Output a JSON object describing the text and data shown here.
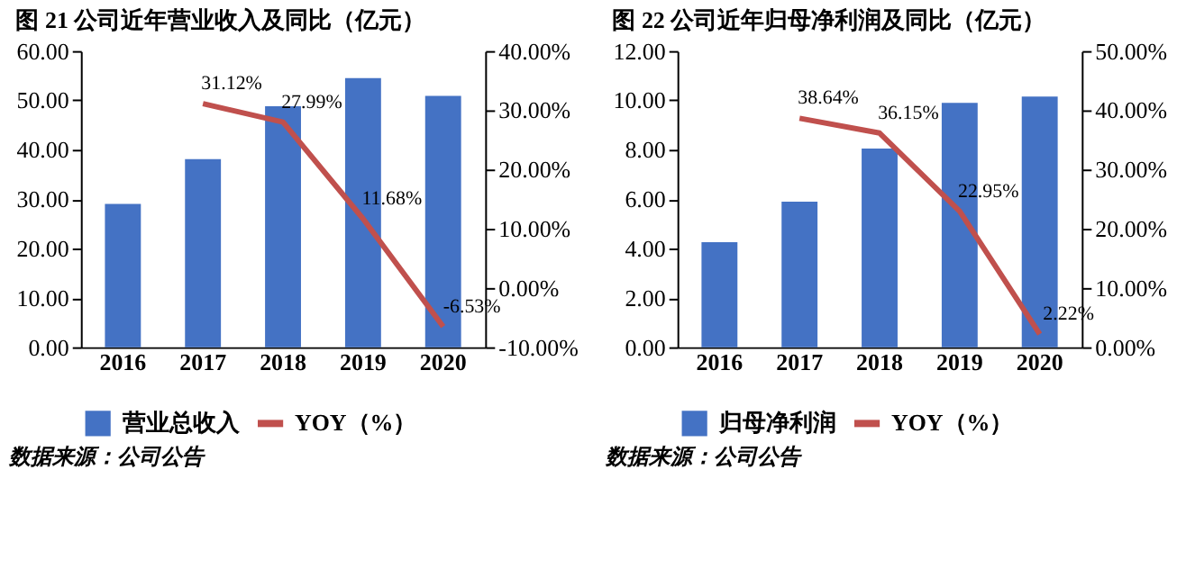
{
  "chart_data": [
    {
      "type": "bar",
      "title": "图 21 公司近年营业收入及同比（亿元）",
      "categories": [
        "2016",
        "2017",
        "2018",
        "2019",
        "2020"
      ],
      "series": [
        {
          "name": "营业总收入",
          "color": "#4472c4",
          "values": [
            29.0,
            38.1,
            48.8,
            54.5,
            50.9
          ]
        },
        {
          "name": "YOY（%）",
          "type": "line",
          "axis": "y2",
          "line_style": "solid",
          "color": "#c0504d",
          "values": [
            null,
            31.12,
            27.99,
            11.68,
            -6.53
          ],
          "value_labels": [
            null,
            "31.12%",
            "27.99%",
            "11.68%",
            "-6.53%"
          ]
        }
      ],
      "ylim": [
        0,
        60
      ],
      "yticks": [
        {
          "value": 0,
          "label": "0.00"
        },
        {
          "value": 10,
          "label": "10.00"
        },
        {
          "value": 20,
          "label": "20.00"
        },
        {
          "value": 30,
          "label": "30.00"
        },
        {
          "value": 40,
          "label": "40.00"
        },
        {
          "value": 50,
          "label": "50.00"
        },
        {
          "value": 60,
          "label": "60.00"
        }
      ],
      "y2lim": [
        -10,
        40
      ],
      "y2ticks": [
        {
          "value": -10,
          "label": "-10.00%"
        },
        {
          "value": 0,
          "label": "0.00%"
        },
        {
          "value": 10,
          "label": "10.00%"
        },
        {
          "value": 20,
          "label": "20.00%"
        },
        {
          "value": 30,
          "label": "30.00%"
        },
        {
          "value": 40,
          "label": "40.00%"
        }
      ],
      "grid": false,
      "legend": "bottom",
      "annotations": [
        "数据来源：公司公告"
      ]
    },
    {
      "type": "bar",
      "title": "图 22 公司近年归母净利润及同比（亿元）",
      "categories": [
        "2016",
        "2017",
        "2018",
        "2019",
        "2020"
      ],
      "series": [
        {
          "name": "归母净利润",
          "color": "#4472c4",
          "values": [
            4.25,
            5.9,
            8.05,
            9.9,
            10.15
          ]
        },
        {
          "name": "YOY（%）",
          "type": "line",
          "axis": "y2",
          "line_style": "solid",
          "color": "#c0504d",
          "values": [
            null,
            38.64,
            36.15,
            22.95,
            2.22
          ],
          "value_labels": [
            null,
            "38.64%",
            "36.15%",
            "22.95%",
            "2.22%"
          ]
        }
      ],
      "ylim": [
        0,
        12
      ],
      "yticks": [
        {
          "value": 0,
          "label": "0.00"
        },
        {
          "value": 2,
          "label": "2.00"
        },
        {
          "value": 4,
          "label": "4.00"
        },
        {
          "value": 6,
          "label": "6.00"
        },
        {
          "value": 8,
          "label": "8.00"
        },
        {
          "value": 10,
          "label": "10.00"
        },
        {
          "value": 12,
          "label": "12.00"
        }
      ],
      "y2lim": [
        0,
        50
      ],
      "y2ticks": [
        {
          "value": 0,
          "label": "0.00%"
        },
        {
          "value": 10,
          "label": "10.00%"
        },
        {
          "value": 20,
          "label": "20.00%"
        },
        {
          "value": 30,
          "label": "30.00%"
        },
        {
          "value": 40,
          "label": "40.00%"
        },
        {
          "value": 50,
          "label": "50.00%"
        }
      ],
      "grid": false,
      "legend": "bottom",
      "annotations": [
        "数据来源：公司公告"
      ]
    }
  ]
}
